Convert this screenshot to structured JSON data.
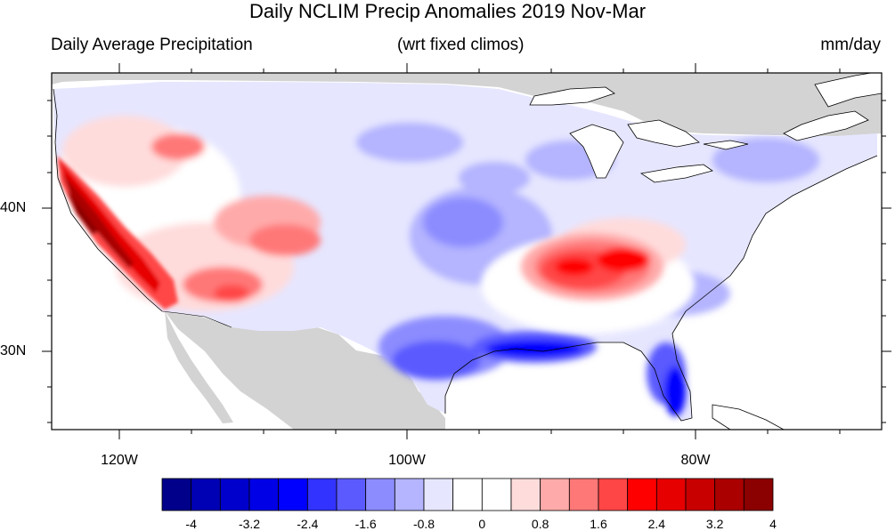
{
  "title": "Daily NCLIM Precip Anomalies 2019 Nov-Mar",
  "left_subtitle": "Daily Average Precipitation",
  "center_subtitle": "(wrt fixed climos)",
  "right_subtitle": "mm/day",
  "lon_labels": [
    "120W",
    "100W",
    "80W"
  ],
  "lat_labels": [
    "40N",
    "30N"
  ],
  "colorbar": {
    "labels": [
      "-4",
      "-3.2",
      "-2.4",
      "-1.6",
      "-0.8",
      "0",
      "0.8",
      "1.6",
      "2.4",
      "3.2",
      "4"
    ],
    "colors": [
      "#00008b",
      "#0000b4",
      "#0000cd",
      "#0000e6",
      "#0000ff",
      "#3333ff",
      "#5a5aff",
      "#8c8cff",
      "#b4b4ff",
      "#e6e6ff",
      "#ffffff",
      "#ffffff",
      "#ffdcdc",
      "#ffaaaa",
      "#ff7878",
      "#ff4646",
      "#ff0000",
      "#e60000",
      "#c80000",
      "#aa0000",
      "#8b0000"
    ]
  },
  "colors": {
    "land_masked": "#d3d3d3",
    "ocean": "#ffffff"
  }
}
